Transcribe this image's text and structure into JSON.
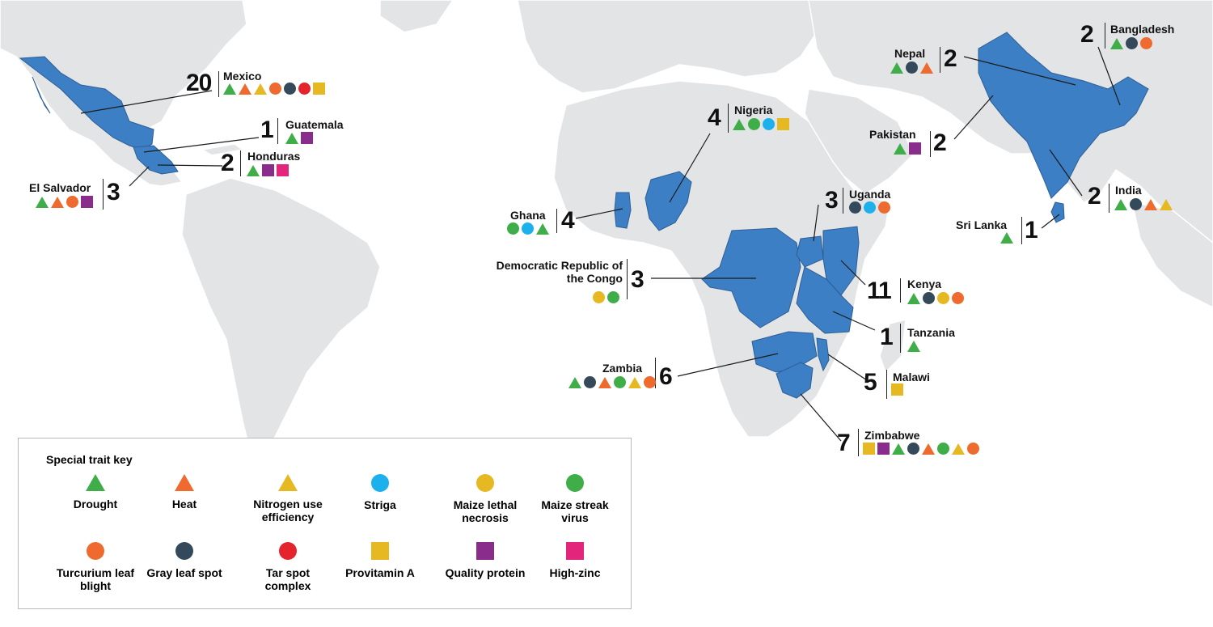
{
  "colors": {
    "land": "#e3e4e6",
    "selected": "#3d7fc4",
    "Drought": "#3fae49",
    "Heat": "#ee6a2e",
    "Nitrogen": "#e6b922",
    "Striga": "#1cb1ec",
    "MLN": "#e6b922",
    "MSV": "#3fae49",
    "TLB": "#ee6a2e",
    "GLS": "#344a5a",
    "TarSpot": "#e4232c",
    "ProvA": "#e6b922",
    "QPM": "#8a2c8c",
    "Zinc": "#e4257c"
  },
  "countries": [
    {
      "name": "Mexico",
      "count": "20",
      "traits": [
        "Drought",
        "Heat",
        "Nitrogen",
        "TLB",
        "GLS",
        "TarSpot",
        "ProvA"
      ]
    },
    {
      "name": "Guatemala",
      "count": "1",
      "traits": [
        "Drought",
        "QPM"
      ]
    },
    {
      "name": "Honduras",
      "count": "2",
      "traits": [
        "Drought",
        "QPM",
        "Zinc"
      ]
    },
    {
      "name": "El Salvador",
      "count": "3",
      "traits": [
        "Drought",
        "Heat",
        "TLB",
        "QPM"
      ]
    },
    {
      "name": "Nigeria",
      "count": "4",
      "traits": [
        "Drought",
        "MSV",
        "Striga",
        "ProvA"
      ]
    },
    {
      "name": "Ghana",
      "count": "4",
      "traits": [
        "MSV",
        "Striga",
        "Drought"
      ]
    },
    {
      "name": "Democratic Republic of the Congo",
      "count": "3",
      "traits": [
        "MLN",
        "MSV"
      ]
    },
    {
      "name": "Uganda",
      "count": "3",
      "traits": [
        "GLS",
        "Striga",
        "TLB"
      ]
    },
    {
      "name": "Kenya",
      "count": "11",
      "traits": [
        "Drought",
        "GLS",
        "MLN",
        "TLB"
      ]
    },
    {
      "name": "Tanzania",
      "count": "1",
      "traits": [
        "Drought"
      ]
    },
    {
      "name": "Zambia",
      "count": "6",
      "traits": [
        "Drought",
        "GLS",
        "Heat",
        "MSV",
        "Nitrogen",
        "TLB"
      ]
    },
    {
      "name": "Malawi",
      "count": "5",
      "traits": [
        "ProvA"
      ]
    },
    {
      "name": "Zimbabwe",
      "count": "7",
      "traits": [
        "ProvA",
        "QPM",
        "Drought",
        "GLS",
        "Heat",
        "MSV",
        "Nitrogen",
        "TLB"
      ]
    },
    {
      "name": "Nepal",
      "count": "2",
      "traits": [
        "Drought",
        "GLS",
        "Heat"
      ]
    },
    {
      "name": "Bangladesh",
      "count": "2",
      "traits": [
        "Drought",
        "GLS",
        "TLB"
      ]
    },
    {
      "name": "Pakistan",
      "count": "2",
      "traits": [
        "Drought",
        "QPM"
      ]
    },
    {
      "name": "India",
      "count": "2",
      "traits": [
        "Drought",
        "GLS",
        "Heat",
        "Nitrogen"
      ]
    },
    {
      "name": "Sri Lanka",
      "count": "1",
      "traits": [
        "Drought"
      ]
    }
  ],
  "key": {
    "title": "Special trait key",
    "items": [
      {
        "id": "Drought",
        "shape": "triangle",
        "label": "Drought"
      },
      {
        "id": "Heat",
        "shape": "triangle",
        "label": "Heat"
      },
      {
        "id": "Nitrogen",
        "shape": "triangle",
        "label": "Nitrogen use efficiency"
      },
      {
        "id": "Striga",
        "shape": "circle",
        "label": "Striga"
      },
      {
        "id": "MLN",
        "shape": "circle",
        "label": "Maize lethal necrosis"
      },
      {
        "id": "MSV",
        "shape": "circle",
        "label": "Maize streak virus"
      },
      {
        "id": "TLB",
        "shape": "circle",
        "label": "Turcurium leaf blight"
      },
      {
        "id": "GLS",
        "shape": "circle",
        "label": "Gray leaf spot"
      },
      {
        "id": "TarSpot",
        "shape": "circle",
        "label": "Tar spot complex"
      },
      {
        "id": "ProvA",
        "shape": "square",
        "label": "Provitamin A"
      },
      {
        "id": "QPM",
        "shape": "square",
        "label": "Quality protein"
      },
      {
        "id": "Zinc",
        "shape": "square",
        "label": "High-zinc"
      }
    ]
  }
}
